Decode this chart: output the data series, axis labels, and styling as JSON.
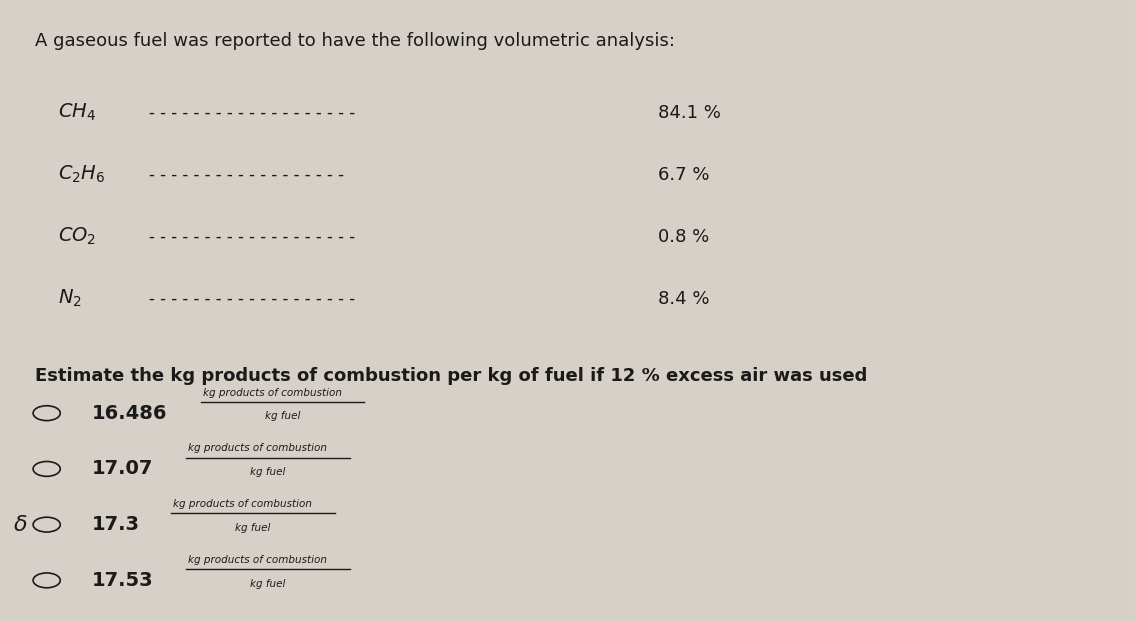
{
  "background_color": "#d6d0c8",
  "title_text": "A gaseous fuel was reported to have the following volumetric analysis:",
  "compounds": [
    {
      "formula_main": "CH",
      "formula_sub": "4",
      "dashes": "- - - - - - - - - - - - - - - - - - -",
      "percent": "84.1 %"
    },
    {
      "formula_main": "C",
      "formula_sub1": "2",
      "formula_mid": "H",
      "formula_sub2": "6",
      "dashes": "- - - - - - - - - - - - - - - -",
      "percent": "6.7 %"
    },
    {
      "formula_main": "CO",
      "formula_sub": "2",
      "dashes": "- - - - - - - - - - - - - - - - - -",
      "percent": "0.8 %"
    },
    {
      "formula_main": "N",
      "formula_sub": "2",
      "dashes": "- - - - - - - - - - - - - - - - - - -",
      "percent": "8.4 %"
    }
  ],
  "question_text": "Estimate the kg products of combustion per kg of fuel if 12 % excess air was used",
  "options": [
    {
      "value": "16.486",
      "selected": false
    },
    {
      "value": "17.07",
      "selected": false
    },
    {
      "value": "17.3",
      "selected": true
    },
    {
      "value": "17.53",
      "selected": false
    }
  ],
  "fraction_top": "kg products of combustion",
  "fraction_bottom": "kg fuel",
  "text_color": "#1a1a1a",
  "font_size_title": 13,
  "font_size_body": 13
}
